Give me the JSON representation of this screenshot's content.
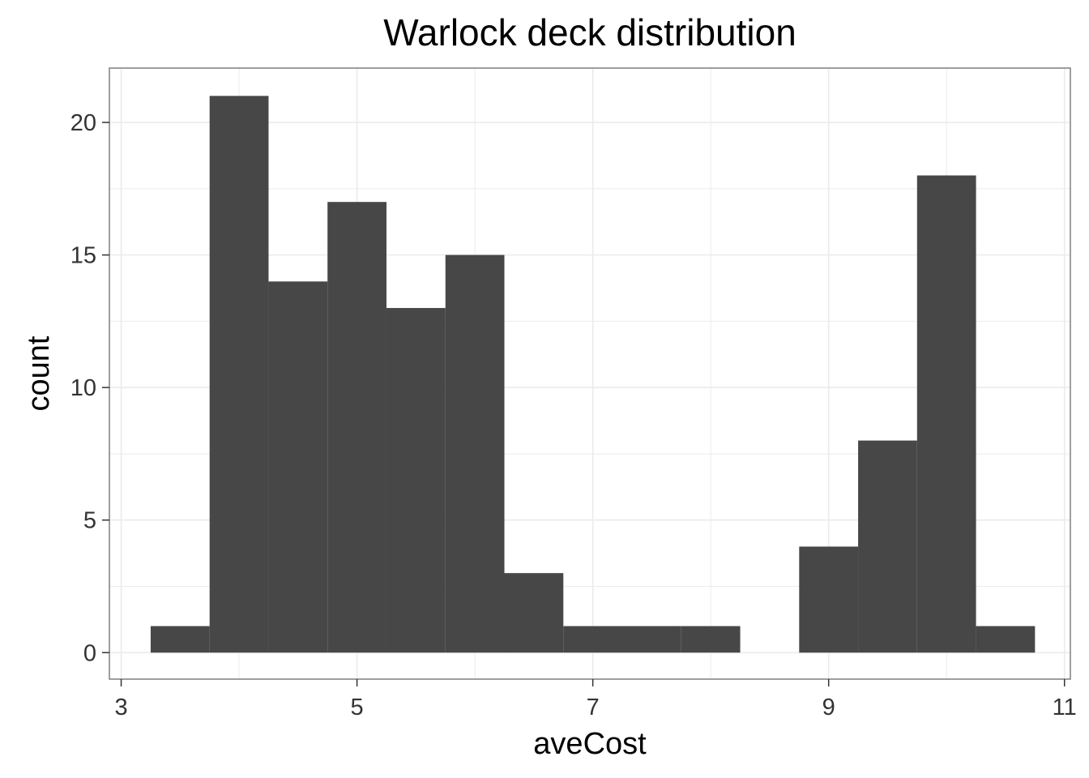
{
  "chart_data": {
    "type": "bar",
    "subtype": "histogram",
    "title": "Warlock deck distribution",
    "xlabel": "aveCost",
    "ylabel": "count",
    "xlim": [
      2.9,
      11.05
    ],
    "ylim": [
      -1.0,
      22.05
    ],
    "x_ticks": [
      3,
      5,
      7,
      9,
      11
    ],
    "y_ticks": [
      0,
      5,
      10,
      15,
      20
    ],
    "bin_width": 0.5,
    "bins": [
      {
        "x0": 3.25,
        "x1": 3.75,
        "count": 1
      },
      {
        "x0": 3.75,
        "x1": 4.25,
        "count": 21
      },
      {
        "x0": 4.25,
        "x1": 4.75,
        "count": 14
      },
      {
        "x0": 4.75,
        "x1": 5.25,
        "count": 17
      },
      {
        "x0": 5.25,
        "x1": 5.75,
        "count": 13
      },
      {
        "x0": 5.75,
        "x1": 6.25,
        "count": 15
      },
      {
        "x0": 6.25,
        "x1": 6.75,
        "count": 3
      },
      {
        "x0": 6.75,
        "x1": 7.25,
        "count": 1
      },
      {
        "x0": 7.25,
        "x1": 7.75,
        "count": 1
      },
      {
        "x0": 7.75,
        "x1": 8.25,
        "count": 1
      },
      {
        "x0": 8.25,
        "x1": 8.75,
        "count": 0
      },
      {
        "x0": 8.75,
        "x1": 9.25,
        "count": 4
      },
      {
        "x0": 9.25,
        "x1": 9.75,
        "count": 8
      },
      {
        "x0": 9.75,
        "x1": 10.25,
        "count": 18
      },
      {
        "x0": 10.25,
        "x1": 10.75,
        "count": 1
      }
    ],
    "grid": true,
    "legend": "none",
    "colors": {
      "bar": "#474747",
      "grid": "#ebebeb",
      "panel_border": "#7f7f7f",
      "background": "#ffffff"
    }
  }
}
